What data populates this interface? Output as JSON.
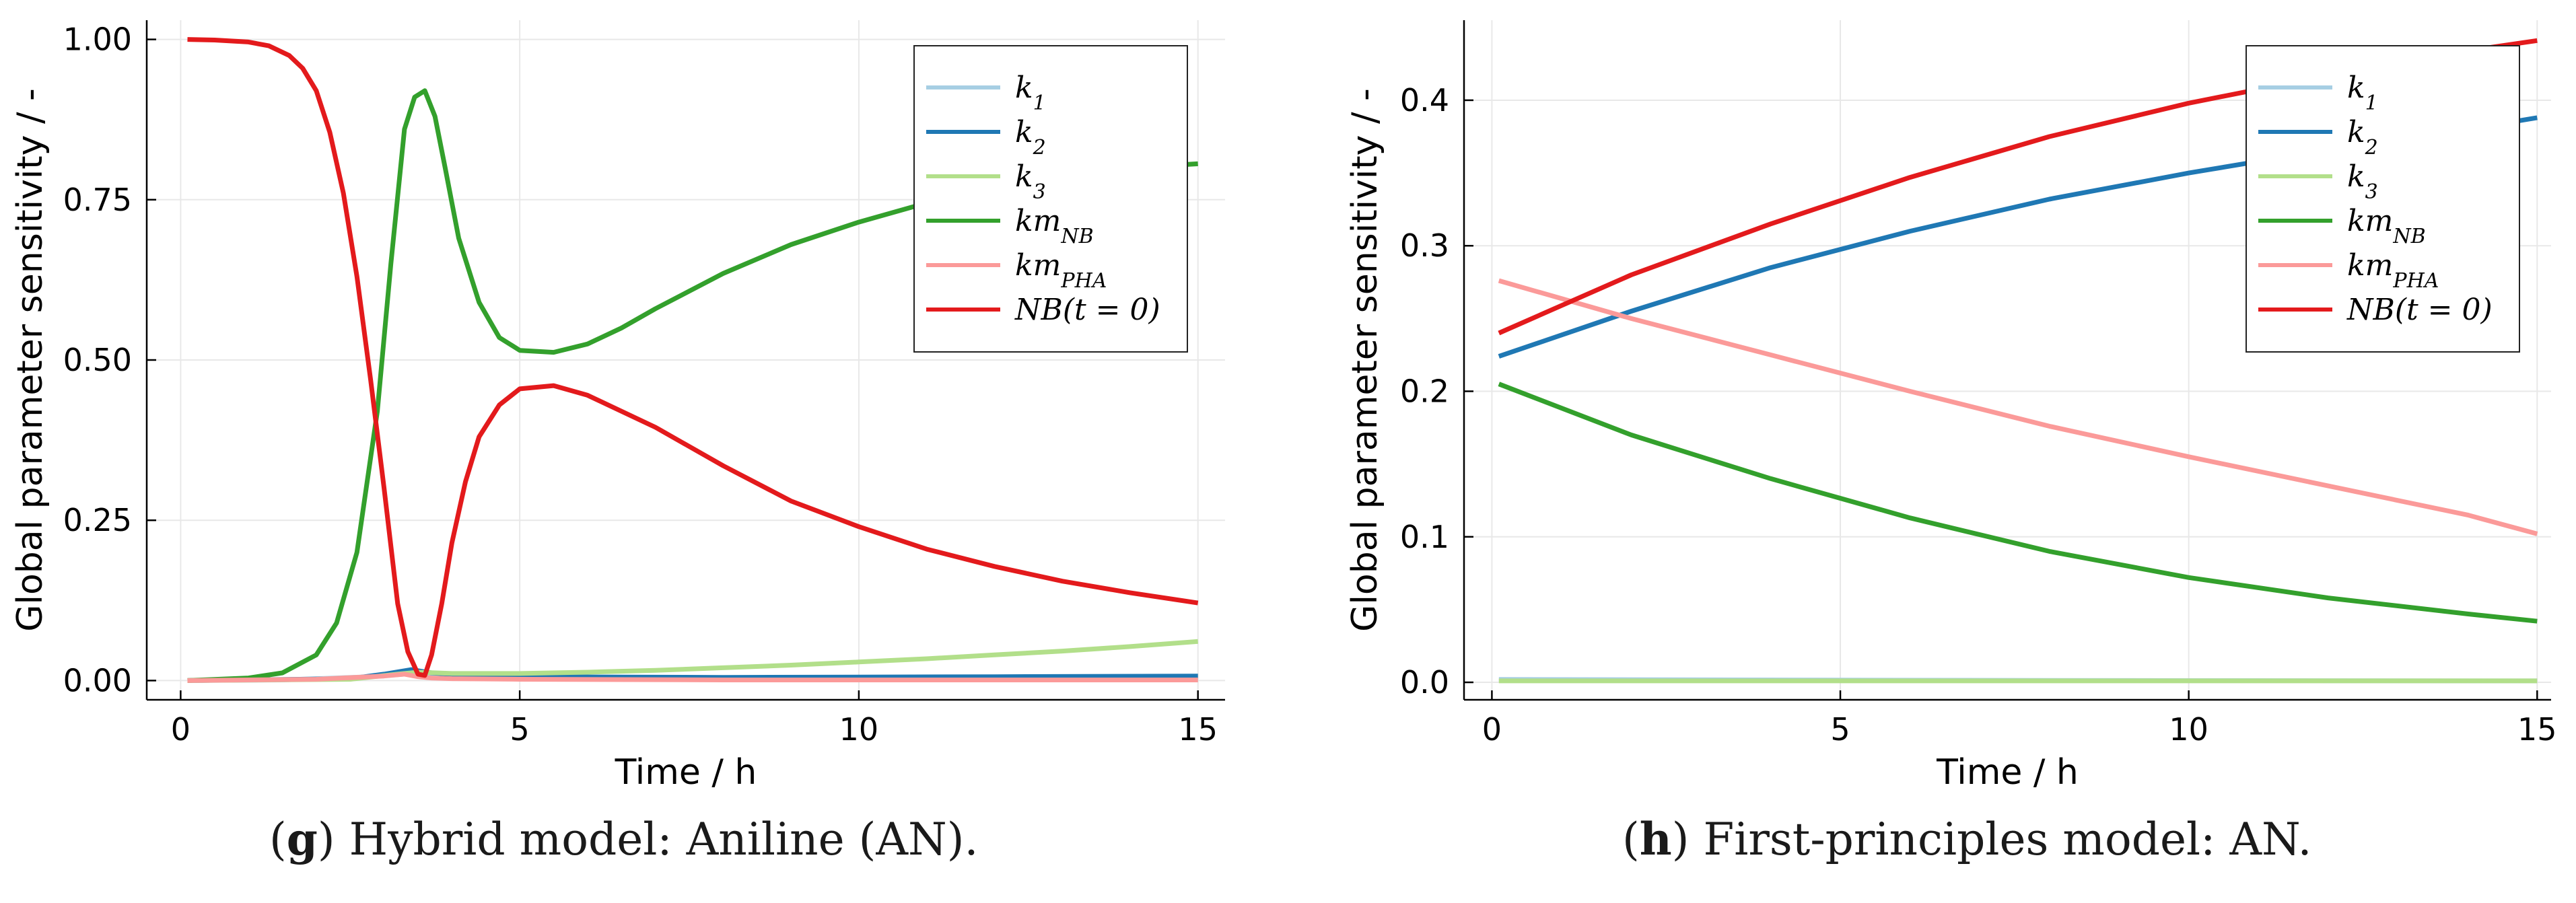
{
  "chart_data": [
    {
      "type": "line",
      "panel": "g",
      "caption_letter": "g",
      "caption_text": "Hybrid model: Aniline (AN).",
      "xlabel": "Time / h",
      "ylabel": "Global parameter sensitivity / -",
      "xlim": [
        -0.5,
        15.4
      ],
      "ylim": [
        -0.03,
        1.03
      ],
      "xticks": [
        0,
        5,
        10,
        15
      ],
      "xtick_labels": [
        "0",
        "5",
        "10",
        "15"
      ],
      "yticks": [
        0,
        0.25,
        0.5,
        0.75,
        1.0
      ],
      "ytick_labels": [
        "0.00",
        "0.25",
        "0.50",
        "0.75",
        "1.00"
      ],
      "grid": true,
      "legend_position": "top-right",
      "series": [
        {
          "name": "k",
          "sub": "1",
          "color": "#a6cee3",
          "x": [
            0.1,
            1.5,
            2.8,
            3.3,
            3.6,
            4.5,
            8,
            12,
            15
          ],
          "y": [
            0,
            0.001,
            0.006,
            0.01,
            0.008,
            0.004,
            0.003,
            0.002,
            0.002
          ]
        },
        {
          "name": "k",
          "sub": "2",
          "color": "#1f78b4",
          "x": [
            0.1,
            2.5,
            3.0,
            3.4,
            3.7,
            4.5,
            8,
            12,
            15
          ],
          "y": [
            0,
            0.003,
            0.01,
            0.017,
            0.012,
            0.006,
            0.005,
            0.006,
            0.007
          ]
        },
        {
          "name": "k",
          "sub": "3",
          "color": "#b2df8a",
          "x": [
            0.1,
            2.5,
            3.2,
            3.5,
            4,
            5,
            6,
            7,
            8,
            9,
            10,
            11,
            12,
            13,
            14,
            15
          ],
          "y": [
            0,
            0.002,
            0.01,
            0.013,
            0.011,
            0.011,
            0.013,
            0.016,
            0.02,
            0.024,
            0.029,
            0.034,
            0.04,
            0.046,
            0.053,
            0.061
          ]
        },
        {
          "name": "km",
          "sub": "NB",
          "color": "#33a02c",
          "x": [
            0.1,
            1.0,
            1.5,
            2.0,
            2.3,
            2.6,
            2.9,
            3.1,
            3.3,
            3.45,
            3.6,
            3.75,
            3.9,
            4.1,
            4.4,
            4.7,
            5.0,
            5.5,
            6,
            6.5,
            7,
            8,
            9,
            10,
            11,
            12,
            13,
            14,
            15
          ],
          "y": [
            0,
            0.004,
            0.012,
            0.04,
            0.09,
            0.2,
            0.42,
            0.65,
            0.86,
            0.91,
            0.92,
            0.88,
            0.8,
            0.69,
            0.59,
            0.535,
            0.515,
            0.512,
            0.525,
            0.55,
            0.58,
            0.635,
            0.68,
            0.715,
            0.745,
            0.77,
            0.785,
            0.8,
            0.806
          ]
        },
        {
          "name": "km",
          "sub": "PHA",
          "color": "#fb9a99",
          "x": [
            0.1,
            2.0,
            3.0,
            3.3,
            3.5,
            3.7,
            4.0,
            5,
            8,
            12,
            15
          ],
          "y": [
            0,
            0.002,
            0.007,
            0.01,
            0.006,
            0.004,
            0.003,
            0.002,
            0.001,
            0.001,
            0.001
          ]
        },
        {
          "name": "NB(t = 0)",
          "sub": "",
          "color": "#e31a1c",
          "x": [
            0.1,
            0.5,
            1.0,
            1.3,
            1.6,
            1.8,
            2.0,
            2.2,
            2.4,
            2.6,
            2.8,
            3.0,
            3.2,
            3.35,
            3.5,
            3.6,
            3.7,
            3.85,
            4.0,
            4.2,
            4.4,
            4.7,
            5.0,
            5.5,
            6,
            7,
            8,
            9,
            10,
            11,
            12,
            13,
            14,
            15
          ],
          "y": [
            1.0,
            0.999,
            0.996,
            0.99,
            0.975,
            0.955,
            0.92,
            0.855,
            0.76,
            0.63,
            0.47,
            0.3,
            0.12,
            0.045,
            0.01,
            0.008,
            0.04,
            0.12,
            0.215,
            0.31,
            0.38,
            0.43,
            0.455,
            0.46,
            0.445,
            0.395,
            0.335,
            0.28,
            0.24,
            0.205,
            0.178,
            0.155,
            0.137,
            0.121
          ]
        }
      ]
    },
    {
      "type": "line",
      "panel": "h",
      "caption_letter": "h",
      "caption_text": "First-principles model: AN.",
      "xlabel": "Time / h",
      "ylabel": "Global parameter sensitivity / -",
      "xlim": [
        -0.4,
        15.2
      ],
      "ylim": [
        -0.012,
        0.455
      ],
      "xticks": [
        0,
        5,
        10,
        15
      ],
      "xtick_labels": [
        "0",
        "5",
        "10",
        "15"
      ],
      "yticks": [
        0,
        0.1,
        0.2,
        0.3,
        0.4
      ],
      "ytick_labels": [
        "0.0",
        "0.1",
        "0.2",
        "0.3",
        "0.4"
      ],
      "grid": true,
      "legend_position": "top-right",
      "series": [
        {
          "name": "k",
          "sub": "1",
          "color": "#a6cee3",
          "x": [
            0.1,
            5,
            10,
            15
          ],
          "y": [
            0.002,
            0.0015,
            0.0012,
            0.001
          ]
        },
        {
          "name": "k",
          "sub": "2",
          "color": "#1f78b4",
          "x": [
            0.1,
            2,
            4,
            6,
            8,
            10,
            12,
            14,
            15
          ],
          "y": [
            0.224,
            0.255,
            0.285,
            0.31,
            0.332,
            0.35,
            0.366,
            0.38,
            0.388
          ]
        },
        {
          "name": "k",
          "sub": "3",
          "color": "#b2df8a",
          "x": [
            0.1,
            5,
            10,
            15
          ],
          "y": [
            0.001,
            0.001,
            0.001,
            0.001
          ]
        },
        {
          "name": "km",
          "sub": "NB",
          "color": "#33a02c",
          "x": [
            0.1,
            2,
            4,
            6,
            8,
            10,
            12,
            14,
            15
          ],
          "y": [
            0.205,
            0.17,
            0.14,
            0.113,
            0.09,
            0.072,
            0.058,
            0.047,
            0.042
          ]
        },
        {
          "name": "km",
          "sub": "PHA",
          "color": "#fb9a99",
          "x": [
            0.1,
            2,
            4,
            6,
            8,
            10,
            12,
            14,
            15
          ],
          "y": [
            0.276,
            0.25,
            0.225,
            0.2,
            0.176,
            0.155,
            0.135,
            0.115,
            0.102
          ]
        },
        {
          "name": "NB(t = 0)",
          "sub": "",
          "color": "#e31a1c",
          "x": [
            0.1,
            2,
            4,
            6,
            8,
            10,
            12,
            14,
            15
          ],
          "y": [
            0.24,
            0.28,
            0.315,
            0.347,
            0.375,
            0.398,
            0.417,
            0.434,
            0.441
          ]
        }
      ]
    }
  ]
}
